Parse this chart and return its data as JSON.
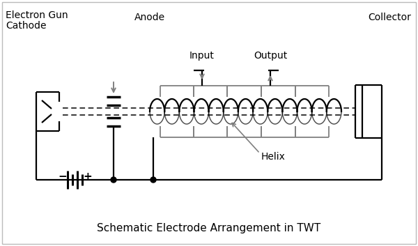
{
  "title": "Schematic Electrode Arrangement in TWT",
  "title_fontsize": 11,
  "bg_color": "#ffffff",
  "line_color": "#000000",
  "gray_color": "#808080",
  "text_color": "#000000",
  "labels": {
    "electron_gun": "Electron Gun",
    "cathode": "Cathode",
    "anode": "Anode",
    "input": "Input",
    "output": "Output",
    "collector": "Collector",
    "helix": "Helix"
  },
  "figsize": [
    6.0,
    3.53
  ],
  "dpi": 100
}
